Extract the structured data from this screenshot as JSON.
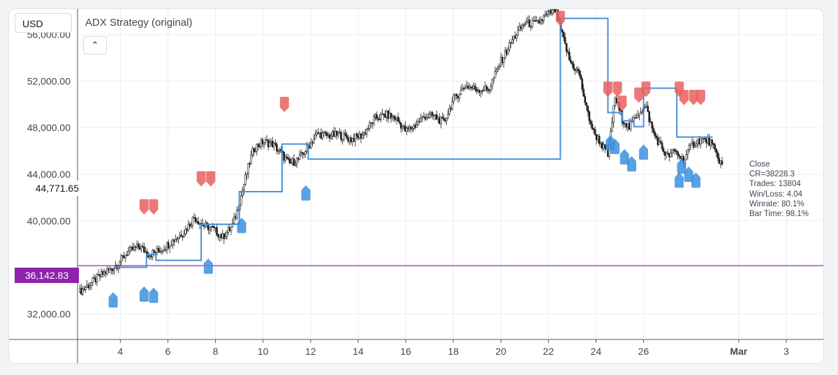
{
  "toolbar": {
    "currency": "USD",
    "strategy_title": "ADX Strategy (original)",
    "collapse_icon": "chevron-up-icon"
  },
  "colors": {
    "candle": "#1e1e1e",
    "equity": "#4a8fd8",
    "long": "#3d8fe0",
    "short": "#e8605f",
    "hline": "#9c27b0",
    "grid": "#e6f0f2"
  },
  "current_price": "44,771.65",
  "hline_price": "36,142.83",
  "stats": {
    "close": "Close",
    "cr": "CR=38228.3",
    "trades": "Trades: 13804",
    "winloss": "Win/Loss: 4.04",
    "winrate": "Winrate: 80.1%",
    "bartime": "Bar Time: 98.1%"
  },
  "chart_data": {
    "type": "line",
    "title": "ADX Strategy (original)",
    "xlabel": "",
    "ylabel": "",
    "x_ticks": [
      "4",
      "6",
      "8",
      "10",
      "12",
      "14",
      "16",
      "18",
      "20",
      "22",
      "24",
      "26",
      "Mar",
      "3"
    ],
    "x_tick_days": [
      4,
      6,
      8,
      10,
      12,
      14,
      16,
      18,
      20,
      22,
      24,
      26,
      30,
      32
    ],
    "y_ticks": [
      "32,000.00",
      "40,000.00",
      "44,000.00",
      "48,000.00",
      "52,000.00",
      "56,000.00"
    ],
    "y_tick_values": [
      32000,
      40000,
      44000,
      48000,
      52000,
      56000
    ],
    "xlim": [
      2.2,
      33.5
    ],
    "ylim": [
      29800,
      58200
    ],
    "grid": true,
    "price_close": [
      [
        2.3,
        33900
      ],
      [
        2.8,
        34700
      ],
      [
        3.3,
        35500
      ],
      [
        3.8,
        36100
      ],
      [
        4.3,
        37300
      ],
      [
        4.8,
        37800
      ],
      [
        5.2,
        37100
      ],
      [
        5.7,
        37500
      ],
      [
        6.2,
        38300
      ],
      [
        6.7,
        39100
      ],
      [
        7.1,
        40300
      ],
      [
        7.5,
        39600
      ],
      [
        7.9,
        39300
      ],
      [
        8.3,
        38600
      ],
      [
        8.7,
        39500
      ],
      [
        9.0,
        41500
      ],
      [
        9.3,
        44000
      ],
      [
        9.6,
        46200
      ],
      [
        10.0,
        46800
      ],
      [
        10.4,
        46600
      ],
      [
        10.8,
        45700
      ],
      [
        11.1,
        44900
      ],
      [
        11.5,
        45300
      ],
      [
        11.9,
        46400
      ],
      [
        12.3,
        47500
      ],
      [
        12.7,
        47300
      ],
      [
        13.2,
        47400
      ],
      [
        13.7,
        47000
      ],
      [
        14.2,
        47400
      ],
      [
        14.7,
        48800
      ],
      [
        15.2,
        49100
      ],
      [
        15.6,
        48800
      ],
      [
        16.0,
        47700
      ],
      [
        16.4,
        48200
      ],
      [
        16.8,
        49000
      ],
      [
        17.2,
        49000
      ],
      [
        17.6,
        48400
      ],
      [
        18.0,
        50400
      ],
      [
        18.5,
        51600
      ],
      [
        19.0,
        51300
      ],
      [
        19.5,
        51300
      ],
      [
        20.0,
        53700
      ],
      [
        20.5,
        55600
      ],
      [
        21.0,
        57000
      ],
      [
        21.5,
        56900
      ],
      [
        22.0,
        57800
      ],
      [
        22.3,
        58100
      ],
      [
        22.6,
        55800
      ],
      [
        22.9,
        53700
      ],
      [
        23.3,
        52600
      ],
      [
        23.6,
        49600
      ],
      [
        23.9,
        47600
      ],
      [
        24.2,
        46700
      ],
      [
        24.5,
        45600
      ],
      [
        24.8,
        50600
      ],
      [
        25.1,
        48800
      ],
      [
        25.4,
        48000
      ],
      [
        25.8,
        49400
      ],
      [
        26.1,
        49800
      ],
      [
        26.4,
        47600
      ],
      [
        26.7,
        46500
      ],
      [
        27.0,
        45500
      ],
      [
        27.3,
        46000
      ],
      [
        27.7,
        45200
      ],
      [
        28.0,
        46500
      ],
      [
        28.4,
        47000
      ],
      [
        28.8,
        46800
      ],
      [
        29.1,
        45500
      ],
      [
        29.3,
        44800
      ]
    ],
    "equity_line": [
      [
        3.8,
        36000
      ],
      [
        5.1,
        36000
      ],
      [
        5.1,
        37100
      ],
      [
        5.5,
        37100
      ],
      [
        5.5,
        36600
      ],
      [
        7.4,
        36600
      ],
      [
        7.4,
        39700
      ],
      [
        9.0,
        39700
      ],
      [
        9.0,
        42500
      ],
      [
        10.8,
        42500
      ],
      [
        10.8,
        46600
      ],
      [
        11.9,
        46600
      ],
      [
        11.9,
        45300
      ],
      [
        22.5,
        45300
      ],
      [
        22.5,
        57400
      ],
      [
        24.5,
        57400
      ],
      [
        24.5,
        49300
      ],
      [
        25.1,
        49300
      ],
      [
        25.1,
        48600
      ],
      [
        25.6,
        48600
      ],
      [
        25.6,
        48100
      ],
      [
        26.0,
        48100
      ],
      [
        26.0,
        51400
      ],
      [
        27.4,
        51400
      ],
      [
        27.4,
        47200
      ],
      [
        28.9,
        47200
      ]
    ],
    "short_signals": [
      [
        5.0,
        41200
      ],
      [
        5.4,
        41200
      ],
      [
        7.4,
        43600
      ],
      [
        7.8,
        43600
      ],
      [
        10.9,
        50000
      ],
      [
        22.5,
        57400
      ],
      [
        24.5,
        51300
      ],
      [
        24.9,
        51300
      ],
      [
        25.1,
        50100
      ],
      [
        25.8,
        50800
      ],
      [
        26.1,
        51300
      ],
      [
        27.5,
        51300
      ],
      [
        27.7,
        50600
      ],
      [
        28.1,
        50600
      ],
      [
        28.4,
        50600
      ]
    ],
    "long_signals": [
      [
        3.7,
        33200
      ],
      [
        5.0,
        33700
      ],
      [
        5.4,
        33600
      ],
      [
        7.7,
        36100
      ],
      [
        9.1,
        39600
      ],
      [
        11.8,
        42400
      ],
      [
        24.6,
        46700
      ],
      [
        24.8,
        46400
      ],
      [
        25.2,
        45500
      ],
      [
        25.5,
        44900
      ],
      [
        26.0,
        45900
      ],
      [
        27.5,
        43500
      ],
      [
        27.6,
        44700
      ],
      [
        27.9,
        44000
      ],
      [
        28.2,
        43500
      ]
    ]
  }
}
